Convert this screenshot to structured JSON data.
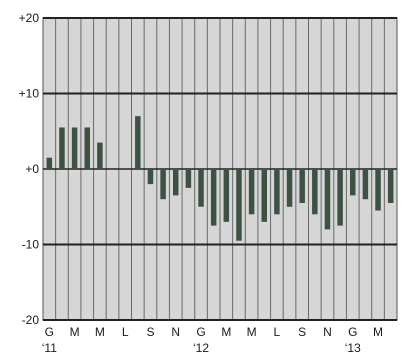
{
  "chart_data": {
    "type": "bar",
    "title": "",
    "xlabel": "",
    "ylabel": "",
    "ylim": [
      -20,
      20
    ],
    "grid": true,
    "y_ticks": [
      20,
      10,
      0,
      -10,
      -20
    ],
    "y_tick_labels": [
      "+20",
      "+10",
      "+0",
      "-10",
      "-20"
    ],
    "categories": [
      "2011-01",
      "2011-02",
      "2011-03",
      "2011-04",
      "2011-05",
      "2011-06",
      "2011-07",
      "2011-08",
      "2011-09",
      "2011-10",
      "2011-11",
      "2011-12",
      "2012-01",
      "2012-02",
      "2012-03",
      "2012-04",
      "2012-05",
      "2012-06",
      "2012-07",
      "2012-08",
      "2012-09",
      "2012-10",
      "2012-11",
      "2012-12",
      "2013-01",
      "2013-02",
      "2013-03",
      "2013-04"
    ],
    "values": [
      1.5,
      5.5,
      5.5,
      5.5,
      3.5,
      0,
      0,
      7,
      -2,
      -4,
      -3.5,
      -2.5,
      -5,
      -7.5,
      -7,
      -9.5,
      -6,
      -7,
      -6,
      -5,
      -4.5,
      -6,
      -8,
      -7.5,
      -3.5,
      -4,
      -5.5,
      -4.5
    ],
    "x_tick_labels": [
      {
        "index": 0,
        "label": "G"
      },
      {
        "index": 2,
        "label": "M"
      },
      {
        "index": 4,
        "label": "M"
      },
      {
        "index": 6,
        "label": "L"
      },
      {
        "index": 8,
        "label": "S"
      },
      {
        "index": 10,
        "label": "N"
      },
      {
        "index": 12,
        "label": "G"
      },
      {
        "index": 14,
        "label": "M"
      },
      {
        "index": 16,
        "label": "M"
      },
      {
        "index": 18,
        "label": "L"
      },
      {
        "index": 20,
        "label": "S"
      },
      {
        "index": 22,
        "label": "N"
      },
      {
        "index": 24,
        "label": "G"
      },
      {
        "index": 26,
        "label": "M"
      }
    ],
    "year_labels": [
      {
        "index": 0,
        "label": "‘11"
      },
      {
        "index": 12,
        "label": "‘12"
      },
      {
        "index": 24,
        "label": "‘13"
      }
    ],
    "colors": {
      "bar": "#3e5244",
      "plot_background": "#d6d6d6",
      "figure_background": "#ffffff",
      "grid": "#222222"
    }
  }
}
